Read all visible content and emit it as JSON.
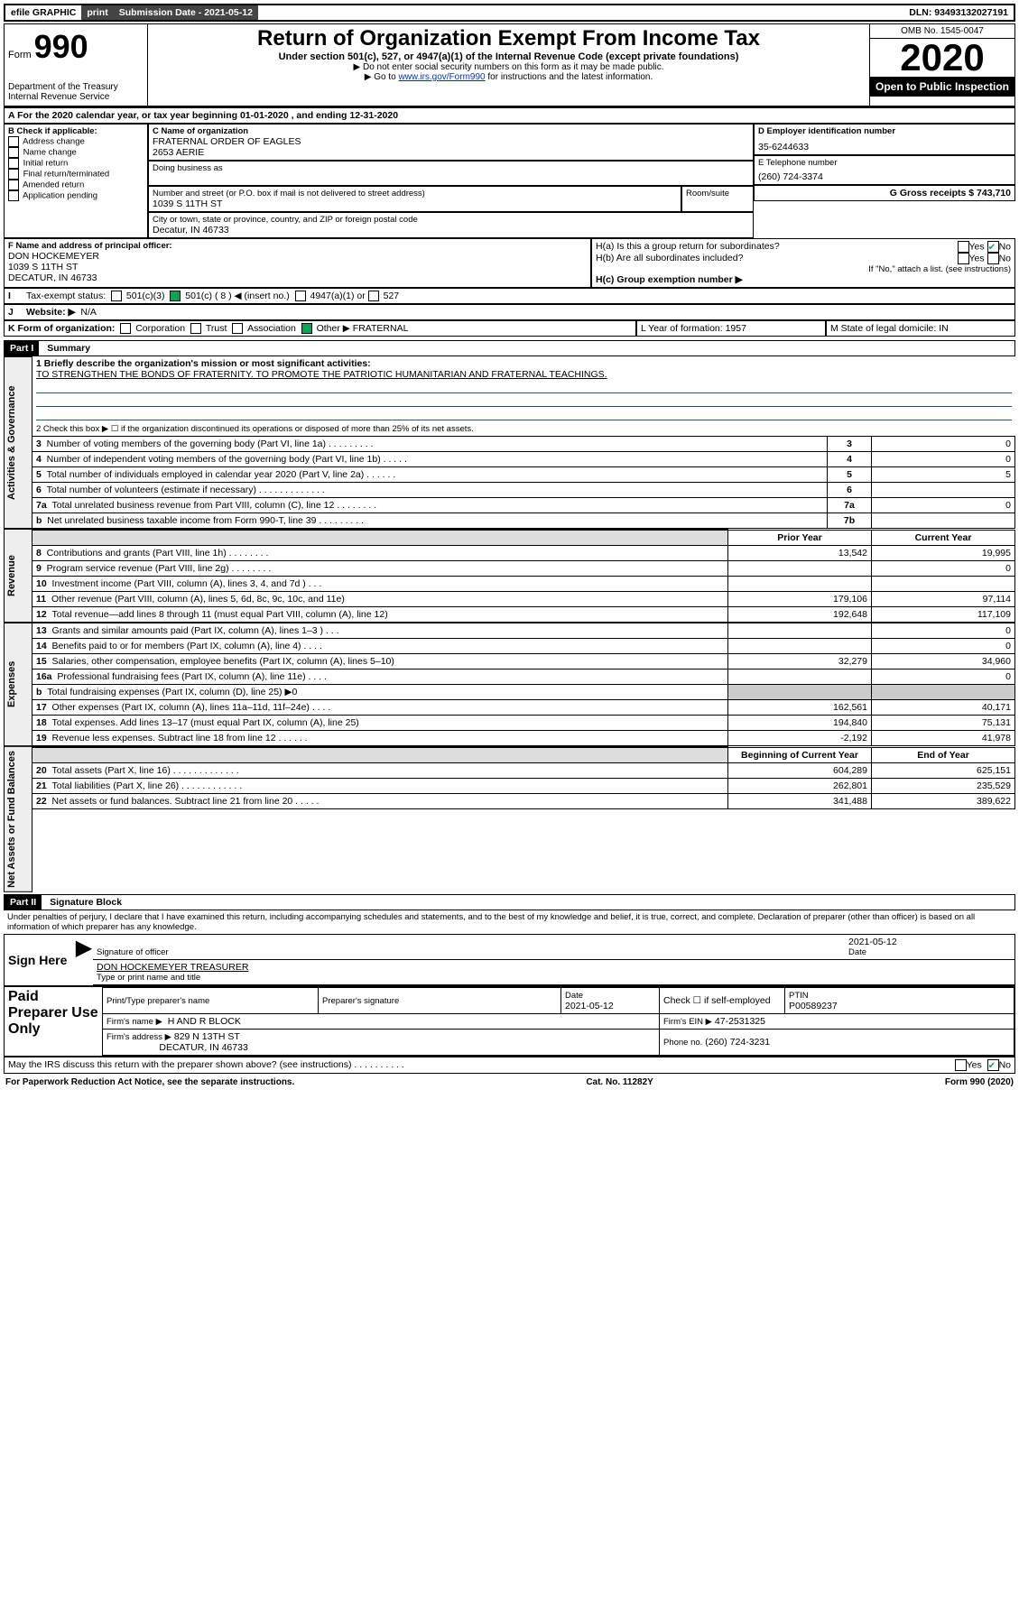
{
  "top": {
    "efile": "efile GRAPHIC",
    "print": "print",
    "sub_label": "Submission Date - 2021-05-12",
    "dln": "DLN: 93493132027191"
  },
  "header": {
    "form_small": "Form",
    "form_big": "990",
    "dept1": "Department of the Treasury",
    "dept2": "Internal Revenue Service",
    "title": "Return of Organization Exempt From Income Tax",
    "sub": "Under section 501(c), 527, or 4947(a)(1) of the Internal Revenue Code (except private foundations)",
    "note1": "▶ Do not enter social security numbers on this form as it may be made public.",
    "note2_pre": "▶ Go to ",
    "note2_link": "www.irs.gov/Form990",
    "note2_post": " for instructions and the latest information.",
    "omb": "OMB No. 1545-0047",
    "year": "2020",
    "open": "Open to Public Inspection"
  },
  "boxA": {
    "line": "For the 2020 calendar year, or tax year beginning 01-01-2020    , and ending 12-31-2020",
    "b_label": "B Check if applicable:",
    "b_opts": [
      "Address change",
      "Name change",
      "Initial return",
      "Final return/terminated",
      "Amended return",
      "Application pending"
    ],
    "c_label": "C Name of organization",
    "c_name": "FRATERNAL ORDER OF EAGLES",
    "c_name2": "2653 AERIE",
    "dba_label": "Doing business as",
    "addr_label": "Number and street (or P.O. box if mail is not delivered to street address)",
    "room_label": "Room/suite",
    "addr": "1039 S 11TH ST",
    "city_label": "City or town, state or province, country, and ZIP or foreign postal code",
    "city": "Decatur, IN  46733",
    "d_label": "D Employer identification number",
    "d_val": "35-6244633",
    "e_label": "E Telephone number",
    "e_val": "(260) 724-3374",
    "g_label": "G Gross receipts $ 743,710",
    "f_label": "F  Name and address of principal officer:",
    "f_name": "DON HOCKEMEYER",
    "f_addr1": "1039 S 11TH ST",
    "f_addr2": "DECATUR, IN  46733",
    "ha_label": "H(a)  Is this a group return for subordinates?",
    "hb_label": "H(b)  Are all subordinates included?",
    "hb_note": "If \"No,\" attach a list. (see instructions)",
    "hc_label": "H(c)  Group exemption number ▶",
    "yes": "Yes",
    "no": "No",
    "i_label": "Tax-exempt status:",
    "i_501c3": "501(c)(3)",
    "i_501c": "501(c) ( 8 ) ◀ (insert no.)",
    "i_4947": "4947(a)(1) or",
    "i_527": "527",
    "j_label": "Website: ▶",
    "j_val": "N/A",
    "k_label": "K Form of organization:",
    "k_corp": "Corporation",
    "k_trust": "Trust",
    "k_assoc": "Association",
    "k_other": "Other ▶",
    "k_other_val": "FRATERNAL",
    "l_label": "L Year of formation: 1957",
    "m_label": "M State of legal domicile: IN"
  },
  "part1": {
    "hdr": "Part I",
    "sub": "Summary",
    "q1_label": "1  Briefly describe the organization's mission or most significant activities:",
    "q1_text": "TO STRENGTHEN THE BONDS OF FRATERNITY. TO PROMOTE THE PATRIOTIC HUMANITARIAN AND FRATERNAL TEACHINGS.",
    "q2": "2   Check this box ▶ ☐  if the organization discontinued its operations or disposed of more than 25% of its net assets.",
    "side_gov": "Activities & Governance",
    "side_rev": "Revenue",
    "side_exp": "Expenses",
    "side_net": "Net Assets or Fund Balances",
    "rows_a": [
      {
        "n": "3",
        "t": "Number of voting members of the governing body (Part VI, line 1a)   .    .    .    .    .    .    .    .    .",
        "c": "3",
        "v": "0"
      },
      {
        "n": "4",
        "t": "Number of independent voting members of the governing body (Part VI, line 1b)   .    .    .    .    .",
        "c": "4",
        "v": "0"
      },
      {
        "n": "5",
        "t": "Total number of individuals employed in calendar year 2020 (Part V, line 2a)   .    .    .    .    .    .",
        "c": "5",
        "v": "5"
      },
      {
        "n": "6",
        "t": "Total number of volunteers (estimate if necessary)   .    .    .    .    .    .    .    .    .    .    .    .    .",
        "c": "6",
        "v": ""
      },
      {
        "n": "7a",
        "t": "Total unrelated business revenue from Part VIII, column (C), line 12   .    .    .    .    .    .    .    .",
        "c": "7a",
        "v": "0"
      },
      {
        "n": "b",
        "t": "Net unrelated business taxable income from Form 990-T, line 39   .    .    .    .    .    .    .    .    .",
        "c": "7b",
        "v": ""
      }
    ],
    "col_prior": "Prior Year",
    "col_curr": "Current Year",
    "rows_rev": [
      {
        "n": "8",
        "t": "Contributions and grants (Part VIII, line 1h)   .    .    .    .    .    .    .    .",
        "p": "13,542",
        "c": "19,995"
      },
      {
        "n": "9",
        "t": "Program service revenue (Part VIII, line 2g)   .    .    .    .    .    .    .    .",
        "p": "",
        "c": "0"
      },
      {
        "n": "10",
        "t": "Investment income (Part VIII, column (A), lines 3, 4, and 7d )   .    .    .",
        "p": "",
        "c": ""
      },
      {
        "n": "11",
        "t": "Other revenue (Part VIII, column (A), lines 5, 6d, 8c, 9c, 10c, and 11e)",
        "p": "179,106",
        "c": "97,114"
      },
      {
        "n": "12",
        "t": "Total revenue—add lines 8 through 11 (must equal Part VIII, column (A), line 12)",
        "p": "192,648",
        "c": "117,109"
      }
    ],
    "rows_exp": [
      {
        "n": "13",
        "t": "Grants and similar amounts paid (Part IX, column (A), lines 1–3 )   .    .    .",
        "p": "",
        "c": "0"
      },
      {
        "n": "14",
        "t": "Benefits paid to or for members (Part IX, column (A), line 4)   .    .    .    .",
        "p": "",
        "c": "0"
      },
      {
        "n": "15",
        "t": "Salaries, other compensation, employee benefits (Part IX, column (A), lines 5–10)",
        "p": "32,279",
        "c": "34,960"
      },
      {
        "n": "16a",
        "t": "Professional fundraising fees (Part IX, column (A), line 11e)   .    .    .    .",
        "p": "",
        "c": "0"
      },
      {
        "n": "b",
        "t": "Total fundraising expenses (Part IX, column (D), line 25) ▶0",
        "p": "—",
        "c": "—"
      },
      {
        "n": "17",
        "t": "Other expenses (Part IX, column (A), lines 11a–11d, 11f–24e)   .    .    .    .",
        "p": "162,561",
        "c": "40,171"
      },
      {
        "n": "18",
        "t": "Total expenses. Add lines 13–17 (must equal Part IX, column (A), line 25)",
        "p": "194,840",
        "c": "75,131"
      },
      {
        "n": "19",
        "t": "Revenue less expenses. Subtract line 18 from line 12   .    .    .    .    .    .",
        "p": "-2,192",
        "c": "41,978"
      }
    ],
    "col_beg": "Beginning of Current Year",
    "col_end": "End of Year",
    "rows_net": [
      {
        "n": "20",
        "t": "Total assets (Part X, line 16)   .    .    .    .    .    .    .    .    .    .    .    .    .",
        "p": "604,289",
        "c": "625,151"
      },
      {
        "n": "21",
        "t": "Total liabilities (Part X, line 26)   .    .    .    .    .    .    .    .    .    .    .    .",
        "p": "262,801",
        "c": "235,529"
      },
      {
        "n": "22",
        "t": "Net assets or fund balances. Subtract line 21 from line 20   .    .    .    .    .",
        "p": "341,488",
        "c": "389,622"
      }
    ]
  },
  "part2": {
    "hdr": "Part II",
    "sub": "Signature Block",
    "perjury": "Under penalties of perjury, I declare that I have examined this return, including accompanying schedules and statements, and to the best of my knowledge and belief, it is true, correct, and complete. Declaration of preparer (other than officer) is based on all information of which preparer has any knowledge.",
    "sign_here": "Sign Here",
    "sig_officer": "Signature of officer",
    "sig_date": "2021-05-12",
    "date_lbl": "Date",
    "name_title": "DON HOCKEMEYER  TREASURER",
    "name_title_lbl": "Type or print name and title",
    "paid": "Paid Preparer Use Only",
    "prep_name_lbl": "Print/Type preparer's name",
    "prep_sig_lbl": "Preparer's signature",
    "prep_date_lbl": "Date",
    "prep_date": "2021-05-12",
    "check_self": "Check ☐ if self-employed",
    "ptin_lbl": "PTIN",
    "ptin": "P00589237",
    "firm_name_lbl": "Firm's name    ▶",
    "firm_name": "H AND R BLOCK",
    "firm_ein_lbl": "Firm's EIN ▶",
    "firm_ein": "47-2531325",
    "firm_addr_lbl": "Firm's address ▶",
    "firm_addr1": "829 N 13TH ST",
    "firm_addr2": "DECATUR, IN  46733",
    "phone_lbl": "Phone no.",
    "phone": "(260) 724-3231",
    "discuss": "May the IRS discuss this return with the preparer shown above? (see instructions)    .    .    .    .    .    .    .    .    .    .",
    "yes": "Yes",
    "no": "No"
  },
  "footer": {
    "left": "For Paperwork Reduction Act Notice, see the separate instructions.",
    "mid": "Cat. No. 11282Y",
    "right": "Form 990 (2020)"
  }
}
